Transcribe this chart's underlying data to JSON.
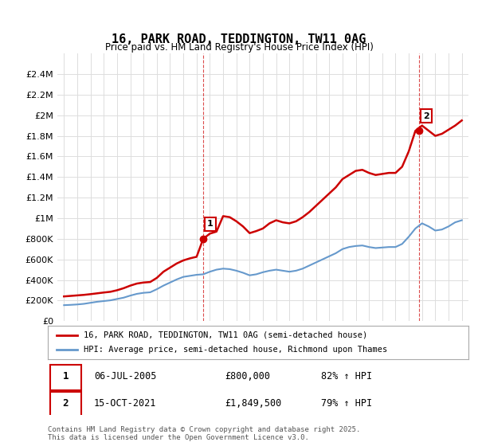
{
  "title": "16, PARK ROAD, TEDDINGTON, TW11 0AG",
  "subtitle": "Price paid vs. HM Land Registry's House Price Index (HPI)",
  "legend_line1": "16, PARK ROAD, TEDDINGTON, TW11 0AG (semi-detached house)",
  "legend_line2": "HPI: Average price, semi-detached house, Richmond upon Thames",
  "annotation1_label": "1",
  "annotation1_date": "06-JUL-2005",
  "annotation1_price": "£800,000",
  "annotation1_hpi": "82% ↑ HPI",
  "annotation1_year": 2005.5,
  "annotation1_value": 800000,
  "annotation2_label": "2",
  "annotation2_date": "15-OCT-2021",
  "annotation2_price": "£1,849,500",
  "annotation2_hpi": "79% ↑ HPI",
  "annotation2_year": 2021.8,
  "annotation2_value": 1849500,
  "footer": "Contains HM Land Registry data © Crown copyright and database right 2025.\nThis data is licensed under the Open Government Licence v3.0.",
  "red_color": "#cc0000",
  "blue_color": "#6699cc",
  "background_color": "#ffffff",
  "grid_color": "#dddddd",
  "ylim_max": 2600000,
  "ylim_min": 0,
  "hpi_data": {
    "years": [
      1995,
      1995.5,
      1996,
      1996.5,
      1997,
      1997.5,
      1998,
      1998.5,
      1999,
      1999.5,
      2000,
      2000.5,
      2001,
      2001.5,
      2002,
      2002.5,
      2003,
      2003.5,
      2004,
      2004.5,
      2005,
      2005.5,
      2006,
      2006.5,
      2007,
      2007.5,
      2008,
      2008.5,
      2009,
      2009.5,
      2010,
      2010.5,
      2011,
      2011.5,
      2012,
      2012.5,
      2013,
      2013.5,
      2014,
      2014.5,
      2015,
      2015.5,
      2016,
      2016.5,
      2017,
      2017.5,
      2018,
      2018.5,
      2019,
      2019.5,
      2020,
      2020.5,
      2021,
      2021.5,
      2022,
      2022.5,
      2023,
      2023.5,
      2024,
      2024.5,
      2025
    ],
    "values": [
      155000,
      158000,
      162000,
      168000,
      178000,
      188000,
      195000,
      202000,
      215000,
      228000,
      248000,
      265000,
      275000,
      280000,
      310000,
      345000,
      375000,
      405000,
      430000,
      440000,
      450000,
      455000,
      480000,
      500000,
      510000,
      505000,
      490000,
      470000,
      445000,
      455000,
      475000,
      490000,
      500000,
      490000,
      480000,
      490000,
      510000,
      540000,
      570000,
      600000,
      630000,
      660000,
      700000,
      720000,
      730000,
      735000,
      720000,
      710000,
      715000,
      720000,
      720000,
      750000,
      820000,
      900000,
      950000,
      920000,
      880000,
      890000,
      920000,
      960000,
      980000
    ]
  },
  "property_data": {
    "years": [
      1995,
      1995.5,
      1996,
      1996.5,
      1997,
      1997.5,
      1998,
      1998.5,
      1999,
      1999.5,
      2000,
      2000.5,
      2001,
      2001.5,
      2002,
      2002.5,
      2003,
      2003.5,
      2004,
      2004.5,
      2005,
      2005.5,
      2006,
      2006.5,
      2007,
      2007.5,
      2008,
      2008.5,
      2009,
      2009.5,
      2010,
      2010.5,
      2011,
      2011.5,
      2012,
      2012.5,
      2013,
      2013.5,
      2014,
      2014.5,
      2015,
      2015.5,
      2016,
      2016.5,
      2017,
      2017.5,
      2018,
      2018.5,
      2019,
      2019.5,
      2020,
      2020.5,
      2021,
      2021.5,
      2022,
      2022.5,
      2023,
      2023.5,
      2024,
      2024.5,
      2025
    ],
    "values": [
      240000,
      245000,
      250000,
      255000,
      262000,
      270000,
      278000,
      285000,
      300000,
      320000,
      345000,
      365000,
      375000,
      380000,
      420000,
      480000,
      520000,
      560000,
      590000,
      610000,
      625000,
      800000,
      850000,
      870000,
      1020000,
      1010000,
      970000,
      920000,
      855000,
      875000,
      900000,
      950000,
      980000,
      960000,
      950000,
      970000,
      1010000,
      1060000,
      1120000,
      1180000,
      1240000,
      1300000,
      1380000,
      1420000,
      1460000,
      1470000,
      1440000,
      1420000,
      1430000,
      1440000,
      1440000,
      1500000,
      1650000,
      1849500,
      1900000,
      1850000,
      1800000,
      1820000,
      1860000,
      1900000,
      1950000
    ]
  }
}
